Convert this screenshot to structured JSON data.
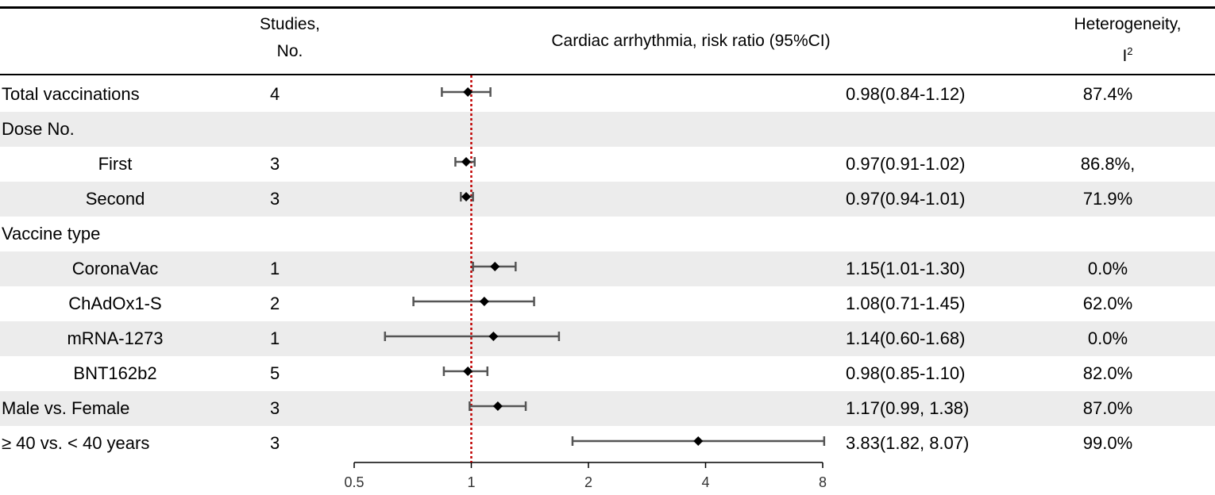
{
  "header": {
    "studies_line1": "Studies,",
    "studies_line2": "No.",
    "measure": "Cardiac arrhythmia, risk ratio (95%CI)",
    "het_line1": "Heterogeneity,",
    "het_line2_base": "I",
    "het_line2_sup": "2"
  },
  "rows": [
    {
      "label": "Total vaccinations",
      "studies": "4",
      "estimate": "0.98(0.84-1.12)",
      "heterogeneity": "87.4%"
    },
    {
      "label": "Dose No.",
      "studies": "",
      "estimate": "",
      "heterogeneity": ""
    },
    {
      "label": "First",
      "studies": "3",
      "estimate": "0.97(0.91-1.02)",
      "heterogeneity": "86.8%,"
    },
    {
      "label": "Second",
      "studies": "3",
      "estimate": "0.97(0.94-1.01)",
      "heterogeneity": "71.9%"
    },
    {
      "label": "Vaccine type",
      "studies": "",
      "estimate": "",
      "heterogeneity": ""
    },
    {
      "label": "CoronaVac",
      "studies": "1",
      "estimate": "1.15(1.01-1.30)",
      "heterogeneity": "0.0%"
    },
    {
      "label": "ChAdOx1-S",
      "studies": "2",
      "estimate": "1.08(0.71-1.45)",
      "heterogeneity": "62.0%"
    },
    {
      "label": "mRNA-1273",
      "studies": "1",
      "estimate": "1.14(0.60-1.68)",
      "heterogeneity": "0.0%"
    },
    {
      "label": "BNT162b2",
      "studies": "5",
      "estimate": "0.98(0.85-1.10)",
      "heterogeneity": "82.0%"
    },
    {
      "label": "Male vs. Female",
      "studies": "3",
      "estimate": "1.17(0.99, 1.38)",
      "heterogeneity": "87.0%"
    },
    {
      "label": "≥ 40 vs. < 40 years",
      "studies": "3",
      "estimate": "3.83(1.82, 8.07)",
      "heterogeneity": "99.0%"
    }
  ],
  "chart_data": {
    "type": "forest",
    "xscale": "log2",
    "xlim": [
      0.5,
      8
    ],
    "xticks": [
      0.5,
      1,
      2,
      4,
      8
    ],
    "xtick_labels": [
      "0.5",
      "1",
      "2",
      "4",
      "8"
    ],
    "reference_line": 1,
    "colors": {
      "reference": "#c00000",
      "ci": "#555555",
      "point": "#000000",
      "shade": "#ececec"
    },
    "series": [
      {
        "label": "Total vaccinations",
        "estimate": 0.98,
        "lower": 0.84,
        "upper": 1.12
      },
      {
        "label": "Dose No.",
        "estimate": null,
        "lower": null,
        "upper": null
      },
      {
        "label": "First",
        "estimate": 0.97,
        "lower": 0.91,
        "upper": 1.02
      },
      {
        "label": "Second",
        "estimate": 0.97,
        "lower": 0.94,
        "upper": 1.01
      },
      {
        "label": "Vaccine type",
        "estimate": null,
        "lower": null,
        "upper": null
      },
      {
        "label": "CoronaVac",
        "estimate": 1.15,
        "lower": 1.01,
        "upper": 1.3
      },
      {
        "label": "ChAdOx1-S",
        "estimate": 1.08,
        "lower": 0.71,
        "upper": 1.45
      },
      {
        "label": "mRNA-1273",
        "estimate": 1.14,
        "lower": 0.6,
        "upper": 1.68
      },
      {
        "label": "BNT162b2",
        "estimate": 0.98,
        "lower": 0.85,
        "upper": 1.1
      },
      {
        "label": "Male vs. Female",
        "estimate": 1.17,
        "lower": 0.99,
        "upper": 1.38
      },
      {
        "label": "≥ 40 vs. < 40 years",
        "estimate": 3.83,
        "lower": 1.82,
        "upper": 8.07
      }
    ]
  }
}
